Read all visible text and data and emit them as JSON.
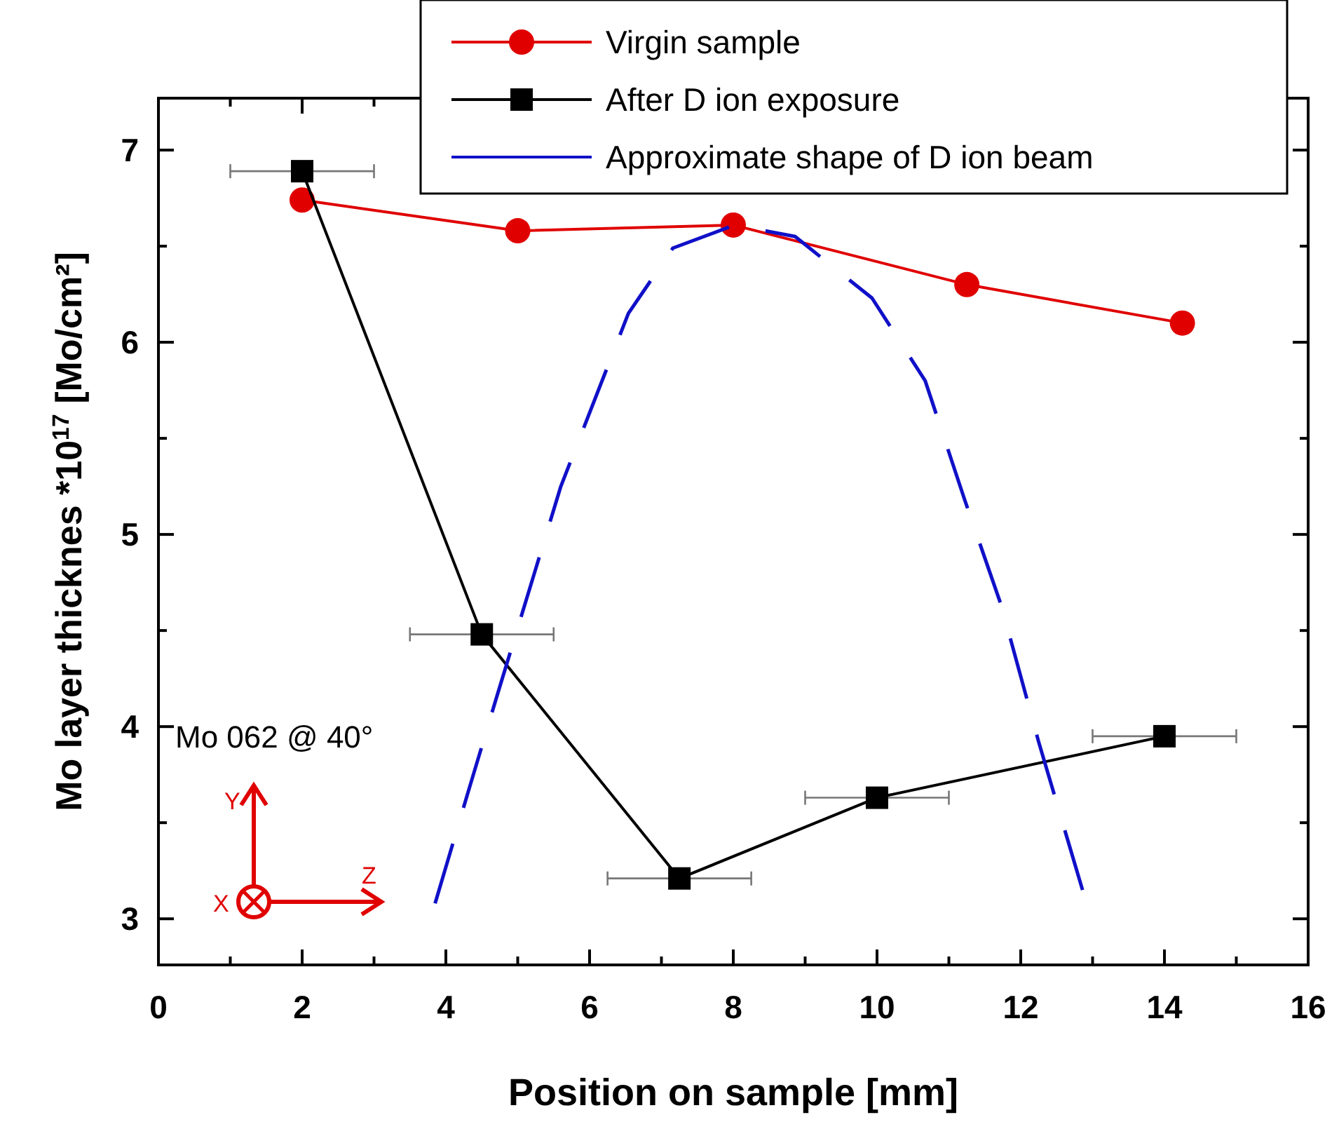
{
  "chart_data": {
    "type": "line",
    "xlabel": "Position on sample [mm]",
    "ylabel": "Mo layer thicknes *10$^{17}$ [Mo/cm²]",
    "xlim": [
      0,
      16
    ],
    "ylim": [
      2.76,
      7.27
    ],
    "xticks": [
      0,
      {
        "value": 1,
        "label": null
      },
      2,
      {
        "value": 3,
        "label": null
      },
      4,
      {
        "value": 5,
        "label": null
      },
      6,
      {
        "value": 7,
        "label": null
      },
      8,
      {
        "value": 9,
        "label": null
      },
      10,
      {
        "value": 11,
        "label": null
      },
      12,
      {
        "value": 13,
        "label": null
      },
      14,
      {
        "value": 15,
        "label": null
      },
      16
    ],
    "yticks": [
      3,
      {
        "value": 3.5,
        "label": null
      },
      4,
      {
        "value": 4.5,
        "label": null
      },
      5,
      {
        "value": 5.5,
        "label": null
      },
      6,
      {
        "value": 6.5,
        "label": null
      },
      7
    ],
    "legend": "top right",
    "grid": false,
    "annotations": [
      "Mo 062 @ 40°",
      "Y",
      "X",
      "Z"
    ],
    "series": [
      {
        "name": "Virgin sample",
        "color": "#e00000",
        "marker": "circle",
        "x": [
          2,
          5,
          8,
          11.25,
          14.25
        ],
        "values": [
          6.74,
          6.58,
          6.61,
          6.3,
          6.1
        ]
      },
      {
        "name": "After D ion exposure",
        "color": "#000000",
        "marker": "square",
        "x": [
          2,
          4.5,
          7.25,
          10,
          14
        ],
        "values": [
          6.89,
          4.48,
          3.21,
          3.63,
          3.95
        ],
        "xerrors": [
          1,
          1,
          1,
          1,
          1
        ]
      },
      {
        "name": "Approximate shape of D ion beam",
        "color": "#1010c8",
        "marker": "none",
        "line_style": "dashed",
        "x": [
          3.85,
          4.31,
          4.72,
          5.6,
          6.54,
          7.16,
          8.02,
          8.86,
          9.93,
          10.67,
          11.22,
          11.73,
          12.25,
          12.86
        ],
        "values": [
          3.08,
          3.66,
          4.17,
          5.25,
          6.15,
          6.49,
          6.61,
          6.55,
          6.23,
          5.8,
          5.18,
          4.63,
          3.92,
          3.15
        ]
      }
    ]
  }
}
